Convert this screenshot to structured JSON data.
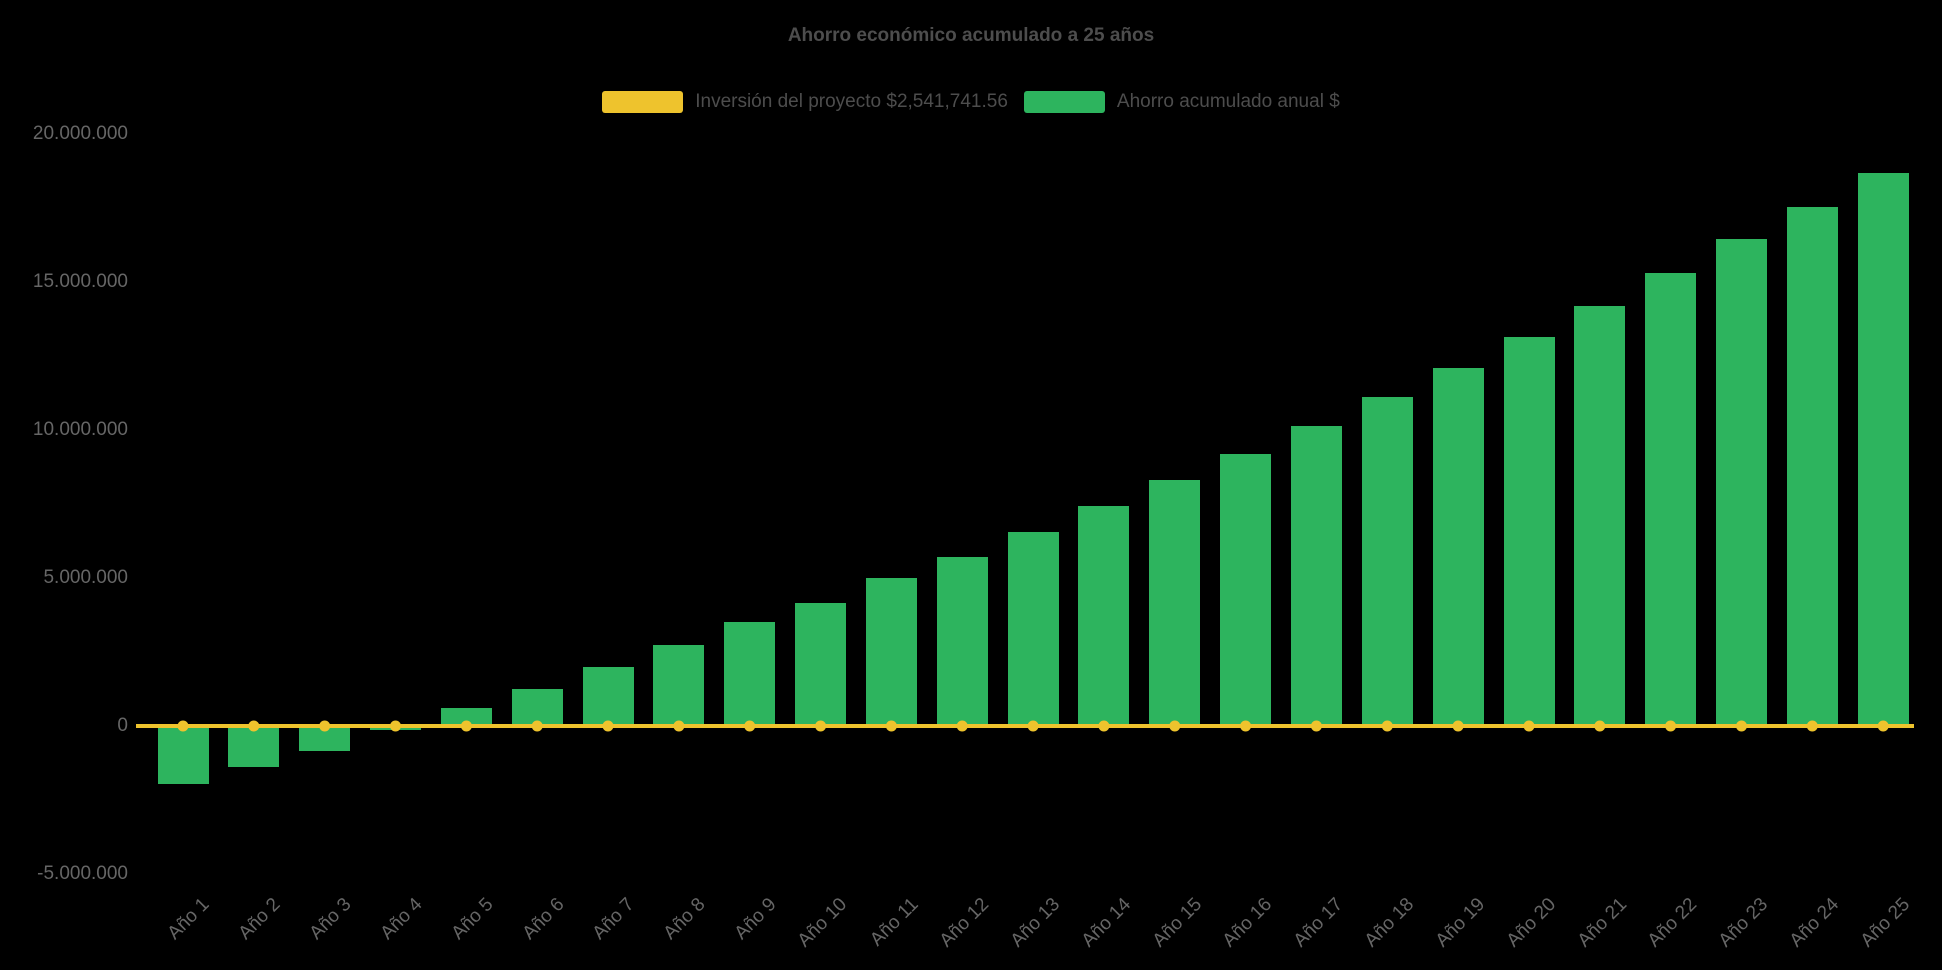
{
  "chart_data": {
    "type": "bar",
    "title": "Ahorro económico acumulado a 25 años",
    "background_color": "#000000",
    "grid": false,
    "legend_position": "top",
    "categories": [
      "Año 1",
      "Año 2",
      "Año 3",
      "Año 4",
      "Año 5",
      "Año 6",
      "Año 7",
      "Año 8",
      "Año 9",
      "Año 10",
      "Año 11",
      "Año 12",
      "Año 13",
      "Año 14",
      "Año 15",
      "Año 16",
      "Año 17",
      "Año 18",
      "Año 19",
      "Año 20",
      "Año 21",
      "Año 22",
      "Año 23",
      "Año 24",
      "Año 25"
    ],
    "series": [
      {
        "name": "Inversión del proyecto $2,541,741.56",
        "type": "line",
        "color": "#eec32d",
        "values": [
          0,
          0,
          0,
          0,
          0,
          0,
          0,
          0,
          0,
          0,
          0,
          0,
          0,
          0,
          0,
          0,
          0,
          0,
          0,
          0,
          0,
          0,
          0,
          0,
          0
        ]
      },
      {
        "name": "Ahorro acumulado anual $",
        "type": "bar",
        "color": "#2db45e",
        "values": [
          -1950000,
          -1400000,
          -850000,
          -150000,
          600000,
          1250000,
          2000000,
          2750000,
          3500000,
          4150000,
          5000000,
          5700000,
          6550000,
          7450000,
          8300000,
          9200000,
          10150000,
          11100000,
          12100000,
          13150000,
          14200000,
          15300000,
          16450000,
          17550000,
          18700000
        ]
      }
    ],
    "ylim": [
      -5000000,
      20000000
    ],
    "yticks": [
      {
        "value": 20000000,
        "label": "20.000.000"
      },
      {
        "value": 15000000,
        "label": "15.000.000"
      },
      {
        "value": 10000000,
        "label": "10.000.000"
      },
      {
        "value": 5000000,
        "label": "5.000.000"
      },
      {
        "value": 0,
        "label": "0"
      },
      {
        "value": -5000000,
        "label": "-5.000.000"
      }
    ],
    "xlabel": "",
    "ylabel": ""
  }
}
